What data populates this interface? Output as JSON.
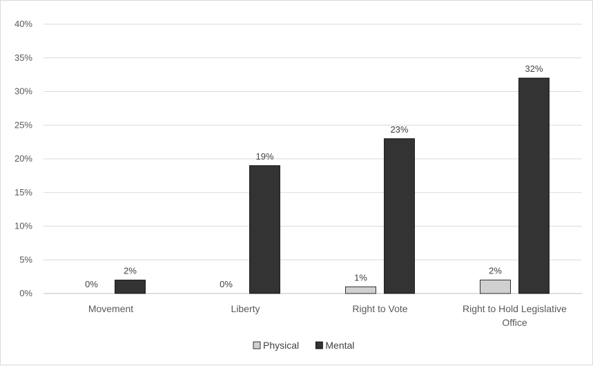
{
  "chart_data": {
    "type": "bar",
    "title": "",
    "xlabel": "",
    "ylabel": "",
    "categories": [
      [
        "Movement"
      ],
      [
        "Liberty"
      ],
      [
        "Right to Vote"
      ],
      [
        "Right to Hold Legislative",
        "Office"
      ]
    ],
    "series": [
      {
        "name": "Physical",
        "values": [
          0,
          0,
          1,
          2
        ],
        "color": "#d0d0d0",
        "labels": [
          "0%",
          "0%",
          "1%",
          "2%"
        ]
      },
      {
        "name": "Mental",
        "values": [
          2,
          19,
          23,
          32
        ],
        "color": "#333333",
        "labels": [
          "2%",
          "19%",
          "23%",
          "32%"
        ]
      }
    ],
    "ylim": [
      0,
      40
    ],
    "yticks": [
      0,
      5,
      10,
      15,
      20,
      25,
      30,
      35,
      40
    ],
    "ytick_labels": [
      "0%",
      "5%",
      "10%",
      "15%",
      "20%",
      "25%",
      "30%",
      "35%",
      "40%"
    ],
    "grid": true,
    "legend_position": "bottom"
  }
}
